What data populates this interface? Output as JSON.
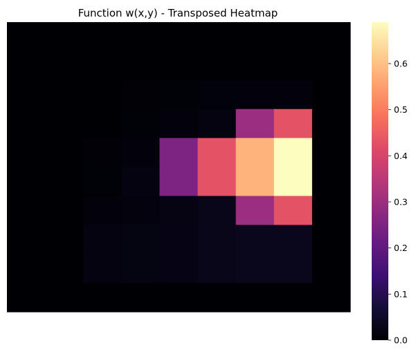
{
  "chart_data": {
    "type": "heatmap",
    "title": "Function w(x,y) - Transposed Heatmap",
    "xlabel": "",
    "ylabel": "",
    "colormap": "magma",
    "vmin": 0.0,
    "vmax": 0.69,
    "grid": false,
    "legend": "colorbar-right",
    "colorbar_ticks": [
      0.0,
      0.1,
      0.2,
      0.3,
      0.4,
      0.5,
      0.6
    ],
    "colorbar_tick_labels": [
      "0.0",
      "0.1",
      "0.2",
      "0.3",
      "0.4",
      "0.5",
      "0.6"
    ],
    "rows": 10,
    "cols": 9,
    "values": [
      [
        0.0,
        0.0,
        0.0,
        0.0,
        0.0,
        0.0,
        0.0,
        0.0,
        0.0
      ],
      [
        0.0,
        0.0,
        0.0,
        0.0,
        0.0,
        0.0,
        0.0,
        0.0,
        0.0
      ],
      [
        0.0,
        0.0,
        0.0,
        0.003,
        0.005,
        0.008,
        0.01,
        0.01,
        0.0
      ],
      [
        0.0,
        0.0,
        0.0,
        0.005,
        0.01,
        0.015,
        0.3,
        0.43,
        0.0
      ],
      [
        0.0,
        0.0,
        0.004,
        0.01,
        0.25,
        0.43,
        0.58,
        0.69,
        0.0
      ],
      [
        0.0,
        0.0,
        0.005,
        0.015,
        0.25,
        0.43,
        0.58,
        0.69,
        0.0
      ],
      [
        0.0,
        0.0,
        0.01,
        0.012,
        0.02,
        0.03,
        0.3,
        0.43,
        0.0
      ],
      [
        0.0,
        0.0,
        0.015,
        0.018,
        0.022,
        0.03,
        0.035,
        0.035,
        0.0
      ],
      [
        0.0,
        0.0,
        0.015,
        0.018,
        0.022,
        0.03,
        0.035,
        0.035,
        0.0
      ],
      [
        0.0,
        0.0,
        0.0,
        0.0,
        0.0,
        0.0,
        0.0,
        0.0,
        0.0
      ]
    ]
  }
}
